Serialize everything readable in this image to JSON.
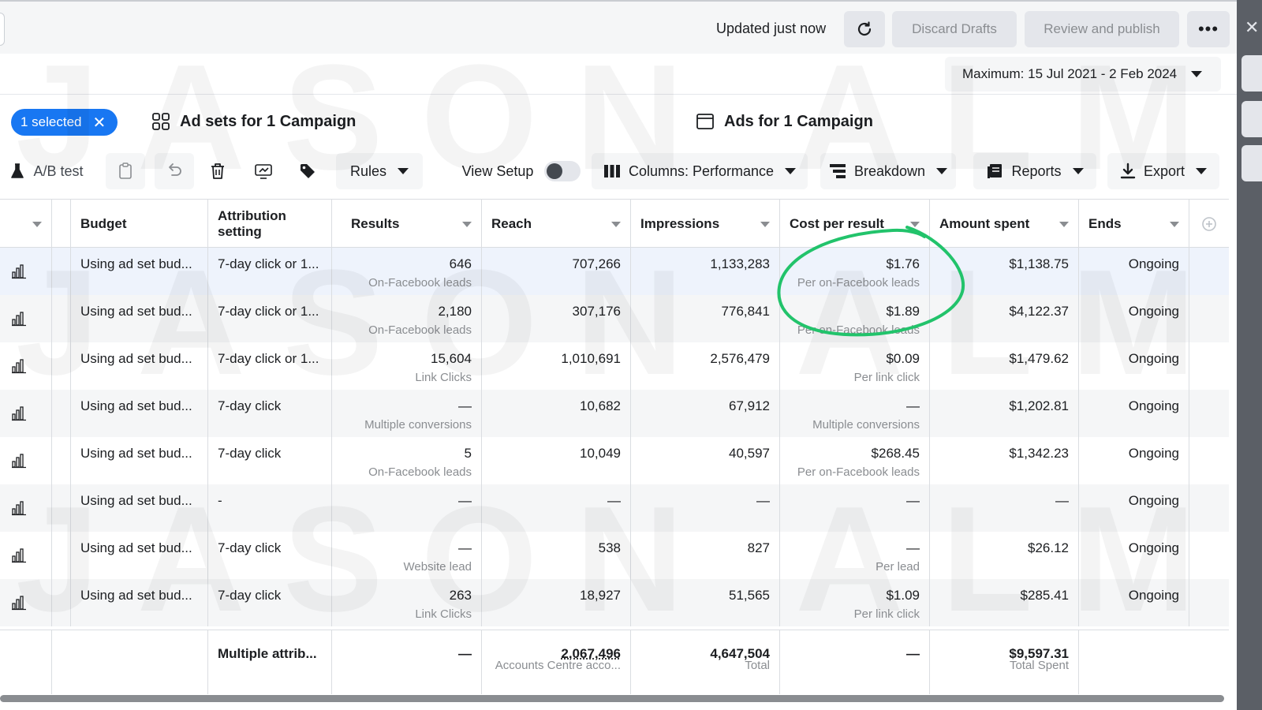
{
  "topbar": {
    "updated": "Updated just now",
    "discard": "Discard Drafts",
    "review": "Review and publish",
    "more": "•••"
  },
  "date": {
    "range": "Maximum: 15 Jul 2021 - 2 Feb 2024"
  },
  "scope": {
    "selected": "1 selected",
    "adsets": "Ad sets for 1 Campaign",
    "ads": "Ads for 1 Campaign"
  },
  "toolbar": {
    "ab_test": "A/B test",
    "rules": "Rules",
    "view_setup": "View Setup",
    "columns": "Columns: Performance",
    "breakdown": "Breakdown",
    "reports": "Reports",
    "export": "Export"
  },
  "columns": {
    "budget": "Budget",
    "attribution_1": "Attribution",
    "attribution_2": "setting",
    "results": "Results",
    "reach": "Reach",
    "impressions": "Impressions",
    "cost_per_result": "Cost per result",
    "amount_spent": "Amount spent",
    "ends": "Ends"
  },
  "rows": [
    {
      "budget": "Using ad set bud...",
      "attribution": "7-day click or 1...",
      "results": "646",
      "results_sub": "On-Facebook leads",
      "reach": "707,266",
      "impressions": "1,133,283",
      "cpr": "$1.76",
      "cpr_sub": "Per on-Facebook leads",
      "spent": "$1,138.75",
      "ends": "Ongoing"
    },
    {
      "budget": "Using ad set bud...",
      "attribution": "7-day click or 1...",
      "results": "2,180",
      "results_sub": "On-Facebook leads",
      "reach": "307,176",
      "impressions": "776,841",
      "cpr": "$1.89",
      "cpr_sub": "Per on-Facebook leads",
      "spent": "$4,122.37",
      "ends": "Ongoing"
    },
    {
      "budget": "Using ad set bud...",
      "attribution": "7-day click or 1...",
      "results": "15,604",
      "results_sub": "Link Clicks",
      "reach": "1,010,691",
      "impressions": "2,576,479",
      "cpr": "$0.09",
      "cpr_sub": "Per link click",
      "spent": "$1,479.62",
      "ends": "Ongoing"
    },
    {
      "budget": "Using ad set bud...",
      "attribution": "7-day click",
      "results": "—",
      "results_sub": "Multiple conversions",
      "reach": "10,682",
      "impressions": "67,912",
      "cpr": "—",
      "cpr_sub": "Multiple conversions",
      "spent": "$1,202.81",
      "ends": "Ongoing"
    },
    {
      "budget": "Using ad set bud...",
      "attribution": "7-day click",
      "results": "5",
      "results_sub": "On-Facebook leads",
      "reach": "10,049",
      "impressions": "40,597",
      "cpr": "$268.45",
      "cpr_sub": "Per on-Facebook leads",
      "spent": "$1,342.23",
      "ends": "Ongoing"
    },
    {
      "budget": "Using ad set bud...",
      "attribution": "-",
      "results": "—",
      "results_sub": "",
      "reach": "—",
      "impressions": "—",
      "cpr": "—",
      "cpr_sub": "",
      "spent": "—",
      "ends": "Ongoing"
    },
    {
      "budget": "Using ad set bud...",
      "attribution": "7-day click",
      "results": "—",
      "results_sub": "Website lead",
      "reach": "538",
      "impressions": "827",
      "cpr": "—",
      "cpr_sub": "Per lead",
      "spent": "$26.12",
      "ends": "Ongoing"
    },
    {
      "budget": "Using ad set bud...",
      "attribution": "7-day click",
      "results": "263",
      "results_sub": "Link Clicks",
      "reach": "18,927",
      "impressions": "51,565",
      "cpr": "$1.09",
      "cpr_sub": "Per link click",
      "spent": "$285.41",
      "ends": "Ongoing"
    }
  ],
  "totals": {
    "attribution": "Multiple attrib...",
    "results": "—",
    "reach": "2,067,496",
    "reach_sub": "Accounts Centre acco...",
    "impressions": "4,647,504",
    "impressions_sub": "Total",
    "cpr": "—",
    "spent": "$9,597.31",
    "spent_sub": "Total Spent"
  },
  "watermark": [
    "JASON ALMINE",
    "JASON ALMINE",
    "JASON ALMINE"
  ],
  "colors": {
    "accent": "#1877f2",
    "annotation": "#22c36b"
  },
  "icons": [
    "refresh-icon",
    "more-icon",
    "caret-icon",
    "close-icon",
    "grid-icon",
    "ads-icon",
    "flask-icon",
    "clipboard-icon",
    "undo-icon",
    "trash-icon",
    "duplicate-icon",
    "tag-icon",
    "columns-icon",
    "breakdown-icon",
    "reports-icon",
    "download-icon",
    "bar-chart-icon",
    "add-column-icon"
  ]
}
